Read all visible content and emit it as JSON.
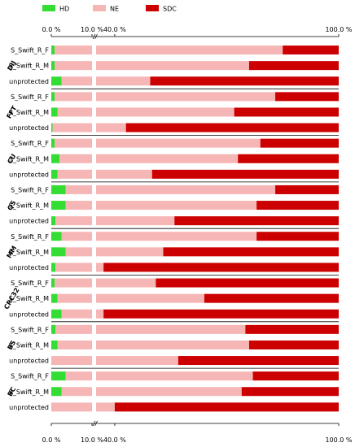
{
  "chart_data": {
    "type": "bar",
    "orientation": "horizontal",
    "stacked": true,
    "axis_break": {
      "from": 10,
      "to": 35
    },
    "xlim": [
      0,
      100
    ],
    "x_ticks": [
      {
        "value": 0,
        "label": "0.0 %"
      },
      {
        "value": 10,
        "label": "10.0 %"
      },
      {
        "value": 40,
        "label": "40.0 %"
      },
      {
        "value": 100,
        "label": "100.0 %"
      }
    ],
    "legend": [
      {
        "name": "HD",
        "color": "#33dd33"
      },
      {
        "name": "NE",
        "color": "#f7b6b6"
      },
      {
        "name": "SDC",
        "color": "#cc0000"
      }
    ],
    "groups": [
      {
        "name": "DIJ",
        "rows": [
          {
            "label": "S_Swift_R_F",
            "HD": 0.8,
            "NE": 84.2,
            "SDC": 15.0
          },
          {
            "label": "S_Swift_R_M",
            "HD": 0.8,
            "NE": 75.2,
            "SDC": 24.0
          },
          {
            "label": "unprotected",
            "HD": 2.5,
            "NE": 47.0,
            "SDC": 50.5
          }
        ]
      },
      {
        "name": "FFT",
        "rows": [
          {
            "label": "S_Swift_R_F",
            "HD": 0.8,
            "NE": 82.2,
            "SDC": 17.0
          },
          {
            "label": "S_Swift_R_M",
            "HD": 1.5,
            "NE": 70.5,
            "SDC": 28.0
          },
          {
            "label": "unprotected",
            "HD": 0.3,
            "NE": 42.7,
            "SDC": 57.0
          }
        ]
      },
      {
        "name": "CU",
        "rows": [
          {
            "label": "S_Swift_R_F",
            "HD": 0.8,
            "NE": 78.2,
            "SDC": 21.0
          },
          {
            "label": "S_Swift_R_M",
            "HD": 2.0,
            "NE": 71.0,
            "SDC": 27.0
          },
          {
            "label": "unprotected",
            "HD": 1.5,
            "NE": 48.5,
            "SDC": 50.0
          }
        ]
      },
      {
        "name": "QS",
        "rows": [
          {
            "label": "S_Swift_R_F",
            "HD": 3.5,
            "NE": 79.5,
            "SDC": 17.0
          },
          {
            "label": "S_Swift_R_M",
            "HD": 3.5,
            "NE": 74.5,
            "SDC": 22.0
          },
          {
            "label": "unprotected",
            "HD": 1.0,
            "NE": 55.0,
            "SDC": 44.0
          }
        ]
      },
      {
        "name": "MM",
        "rows": [
          {
            "label": "S_Swift_R_F",
            "HD": 2.5,
            "NE": 75.5,
            "SDC": 22.0
          },
          {
            "label": "S_Swift_R_M",
            "HD": 3.5,
            "NE": 49.5,
            "SDC": 47.0
          },
          {
            "label": "unprotected",
            "HD": 1.0,
            "NE": 36.0,
            "SDC": 63.0
          }
        ]
      },
      {
        "name": "CRC32",
        "rows": [
          {
            "label": "S_Swift_R_F",
            "HD": 0.8,
            "NE": 50.2,
            "SDC": 49.0
          },
          {
            "label": "S_Swift_R_M",
            "HD": 1.5,
            "NE": 62.5,
            "SDC": 36.0
          },
          {
            "label": "unprotected",
            "HD": 2.5,
            "NE": 34.5,
            "SDC": 63.0
          }
        ]
      },
      {
        "name": "BS",
        "rows": [
          {
            "label": "S_Swift_R_F",
            "HD": 1.0,
            "NE": 74.0,
            "SDC": 25.0
          },
          {
            "label": "S_Swift_R_M",
            "HD": 1.5,
            "NE": 74.5,
            "SDC": 24.0
          },
          {
            "label": "unprotected",
            "HD": 0.0,
            "NE": 57.0,
            "SDC": 43.0
          }
        ]
      },
      {
        "name": "BC",
        "rows": [
          {
            "label": "S_Swift_R_F",
            "HD": 3.5,
            "NE": 73.5,
            "SDC": 23.0
          },
          {
            "label": "S_Swift_R_M",
            "HD": 2.5,
            "NE": 71.5,
            "SDC": 26.0
          },
          {
            "label": "unprotected",
            "HD": 0.0,
            "NE": 40.0,
            "SDC": 60.0
          }
        ]
      }
    ]
  }
}
